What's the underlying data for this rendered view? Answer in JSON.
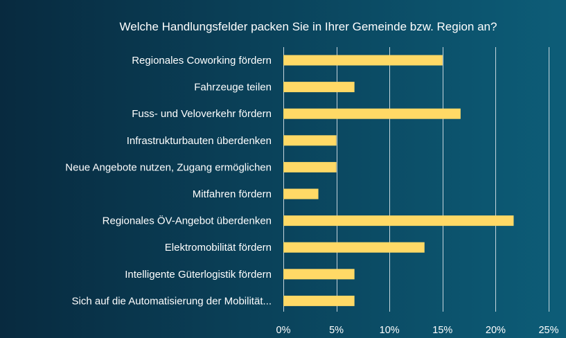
{
  "chart_data": {
    "type": "bar",
    "orientation": "horizontal",
    "title": "Welche Handlungsfelder  packen Sie in Ihrer Gemeinde  bzw. Region an?",
    "xlabel": "",
    "ylabel": "",
    "categories": [
      "Regionales Coworking fördern",
      "Fahrzeuge teilen",
      "Fuss- und Veloverkehr fördern",
      "Infrastrukturbauten überdenken",
      "Neue Angebote nutzen, Zugang ermöglichen",
      "Mitfahren fördern",
      "Regionales ÖV-Angebot überdenken",
      "Elektromobilität fördern",
      "Intelligente Güterlogistik fördern",
      "Sich auf die Automatisierung der Mobilität..."
    ],
    "values": [
      15.0,
      6.7,
      16.7,
      5.0,
      5.0,
      3.3,
      21.7,
      13.3,
      6.7,
      6.7
    ],
    "value_unit": "%",
    "xlim": [
      0,
      25
    ],
    "xticks": [
      0,
      5,
      10,
      15,
      20,
      25
    ],
    "xtick_labels": [
      "0%",
      "5%",
      "10%",
      "15%",
      "20%",
      "25%"
    ],
    "grid": true,
    "bar_color": "#ffd966",
    "text_color": "#ffffff",
    "background_colors": [
      "#082a3f",
      "#0d5d78"
    ]
  }
}
